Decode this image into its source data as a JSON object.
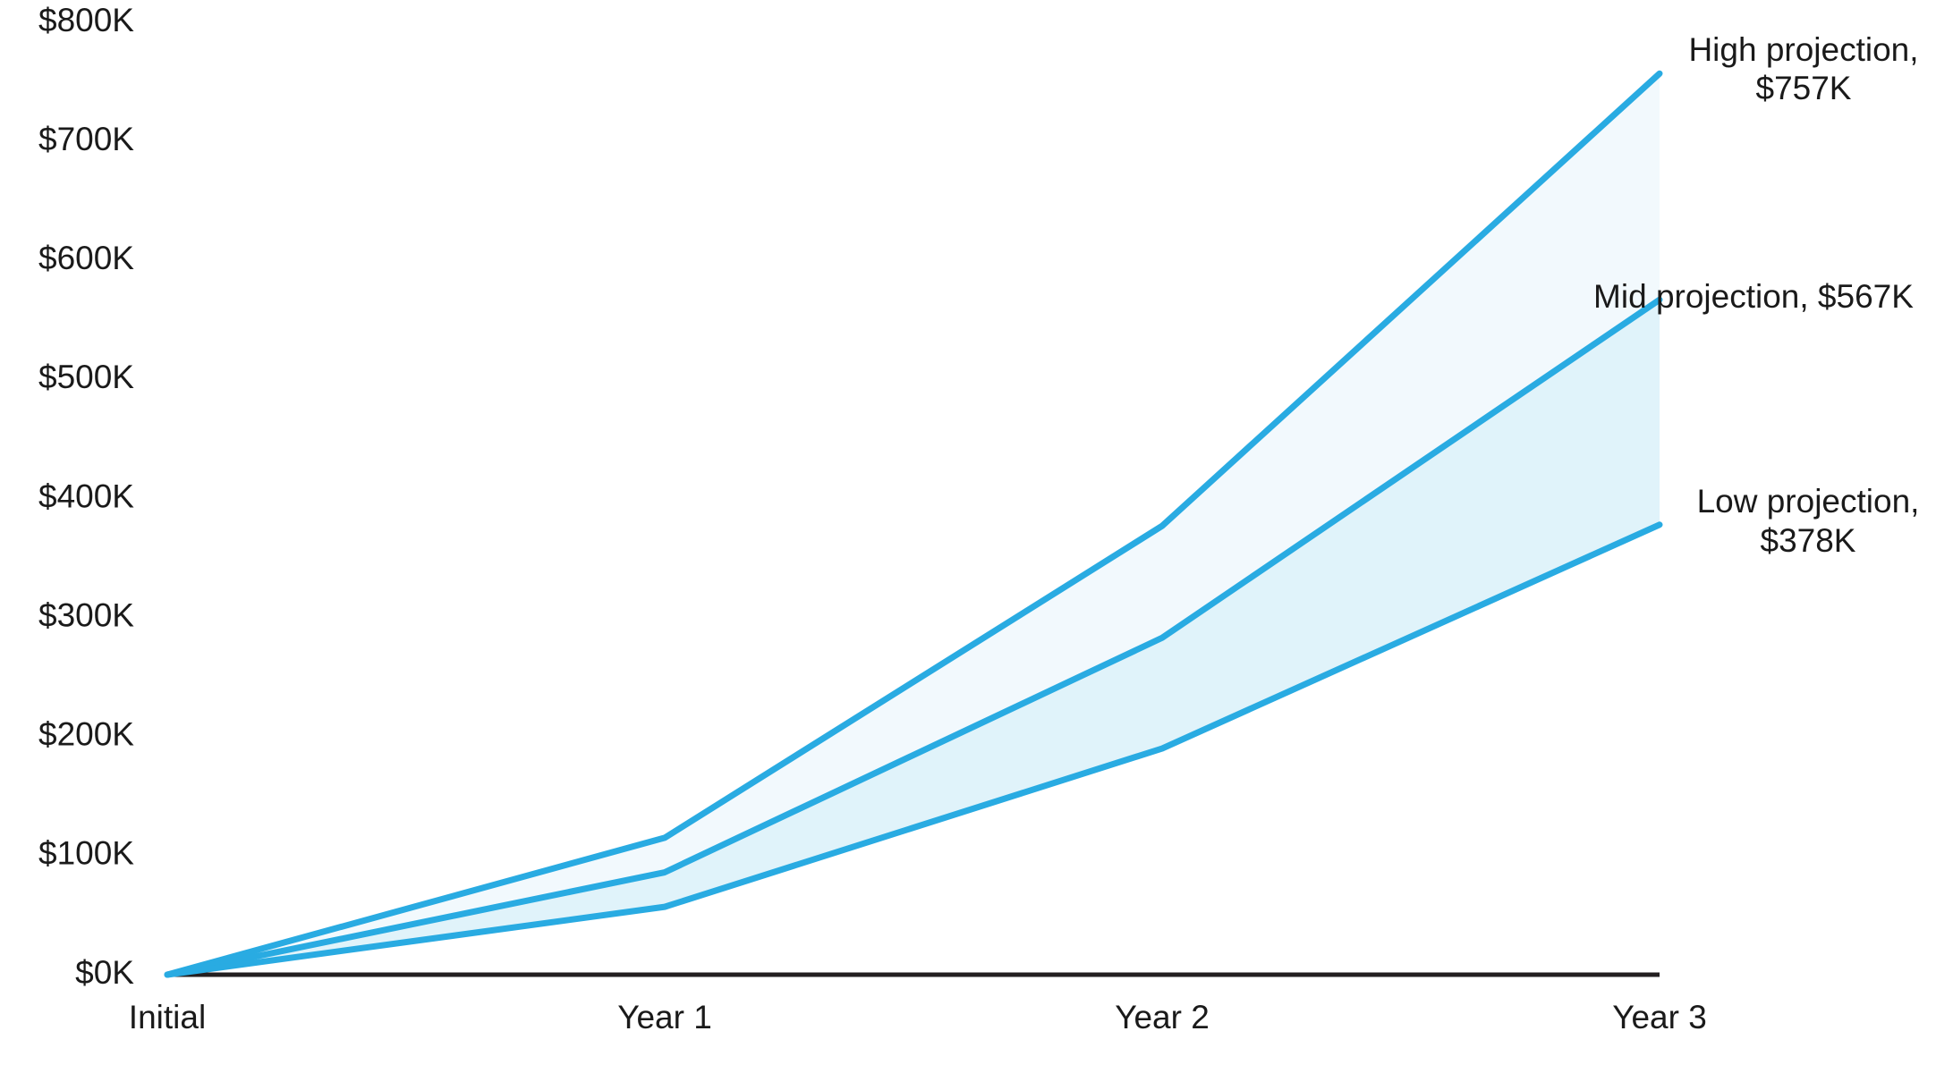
{
  "chart_data": {
    "type": "line",
    "categories": [
      "Initial",
      "Year 1",
      "Year 2",
      "Year 3"
    ],
    "series": [
      {
        "color": "#29abe2",
        "values": [
          0,
          115,
          377,
          757
        ],
        "label": [
          "High projection,",
          "$757K"
        ]
      },
      {
        "color": "#29abe2",
        "values": [
          0,
          86,
          283,
          567
        ],
        "label": [
          "Mid projection, $567K"
        ]
      },
      {
        "color": "#29abe2",
        "values": [
          0,
          57,
          190,
          378
        ],
        "label": [
          "Low projection,",
          "$378K"
        ]
      }
    ],
    "band_colors": [
      "#f2f9fd",
      "#e0f3fa"
    ],
    "ylim": [
      0,
      800
    ],
    "yticks": [
      {
        "value": 0,
        "label": "$0K"
      },
      {
        "value": 100,
        "label": "$100K"
      },
      {
        "value": 200,
        "label": "$200K"
      },
      {
        "value": 300,
        "label": "$300K"
      },
      {
        "value": 400,
        "label": "$400K"
      },
      {
        "value": 500,
        "label": "$500K"
      },
      {
        "value": 600,
        "label": "$600K"
      },
      {
        "value": 700,
        "label": "$700K"
      },
      {
        "value": 800,
        "label": "$800K"
      }
    ],
    "grid": false
  }
}
